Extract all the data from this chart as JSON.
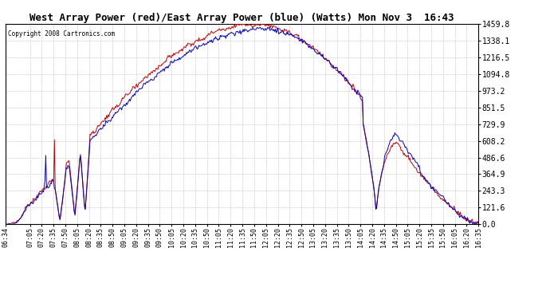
{
  "title": "West Array Power (red)/East Array Power (blue) (Watts) Mon Nov 3  16:43",
  "copyright": "Copyright 2008 Cartronics.com",
  "background_color": "#ffffff",
  "plot_bg_color": "#ffffff",
  "grid_color": "#bbbbbb",
  "x_tick_labels": [
    "06:34",
    "07:05",
    "07:20",
    "07:35",
    "07:50",
    "08:05",
    "08:20",
    "08:35",
    "08:50",
    "09:05",
    "09:20",
    "09:35",
    "09:50",
    "10:05",
    "10:20",
    "10:35",
    "10:50",
    "11:05",
    "11:20",
    "11:35",
    "11:50",
    "12:05",
    "12:20",
    "12:35",
    "12:50",
    "13:05",
    "13:20",
    "13:35",
    "13:50",
    "14:05",
    "14:20",
    "14:35",
    "14:50",
    "15:05",
    "15:20",
    "15:35",
    "15:50",
    "16:05",
    "16:20",
    "16:35"
  ],
  "y_tick_values": [
    0.0,
    121.6,
    243.3,
    364.9,
    486.6,
    608.2,
    729.9,
    851.5,
    973.2,
    1094.8,
    1216.5,
    1338.1,
    1459.8
  ],
  "ymax": 1459.8,
  "ymin": 0.0,
  "red_color": "#cc0000",
  "blue_color": "#0000cc"
}
